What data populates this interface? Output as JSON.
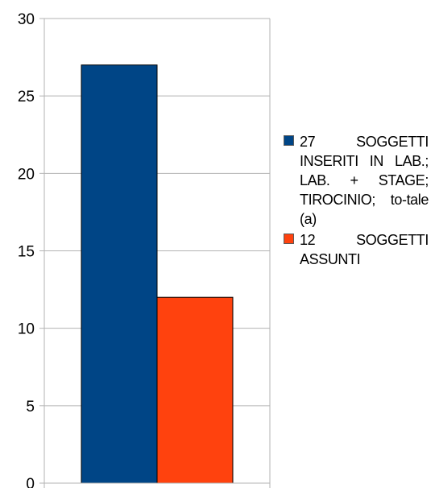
{
  "chart_data": {
    "type": "bar",
    "categories": [
      ""
    ],
    "series": [
      {
        "name": "27 SOGGETTI INSERITI IN LAB.; LAB. + STAGE; TIROCINIO; to-tale (a)",
        "values": [
          27
        ],
        "color": "#004586"
      },
      {
        "name": "12 SOGGETTI ASSUNTI",
        "values": [
          12
        ],
        "color": "#ff420e"
      }
    ],
    "ylim": [
      0,
      30
    ],
    "yticks": [
      0,
      5,
      10,
      15,
      20,
      25,
      30
    ],
    "grid": true,
    "legend_position": "right",
    "title": "",
    "xlabel": "",
    "ylabel": ""
  }
}
